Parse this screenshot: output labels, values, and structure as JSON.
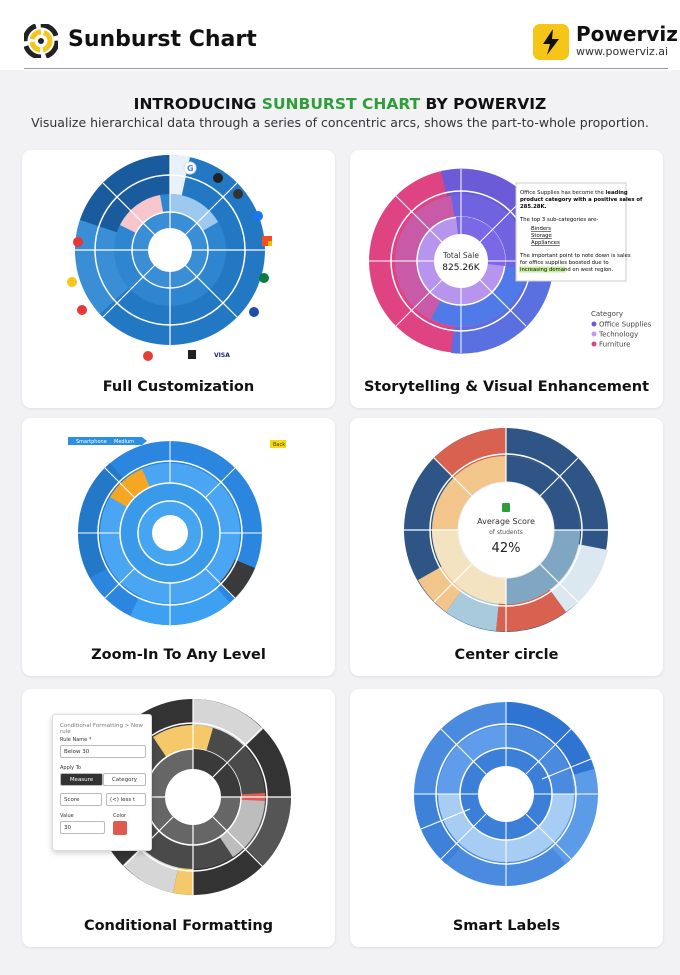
{
  "header": {
    "title": "Sunburst Chart",
    "brand": "Powerviz",
    "url": "www.powerviz.ai"
  },
  "intro": {
    "pre": "INTRODUCING ",
    "accent": "SUNBURST CHART",
    "post": " BY POWERVIZ",
    "subtitle": "Visualize hierarchical data through a series of concentric arcs, shows the part-to-whole proportion."
  },
  "cards": [
    {
      "caption": "Full Customization"
    },
    {
      "caption": "Storytelling & Visual Enhancement"
    },
    {
      "caption": "Zoom-In To Any Level"
    },
    {
      "caption": "Center circle"
    },
    {
      "caption": "Conditional Formatting"
    },
    {
      "caption": "Smart Labels"
    }
  ],
  "story": {
    "center_title": "Total Sale",
    "center_value": "825.26K",
    "note_1a": "Office Supplies",
    "note_1b": " has become the ",
    "note_1c": "leading",
    "note_2": "product category with a positive sales of",
    "note_3": "285.28K.",
    "note_4": "The top 3 sub-categories are-",
    "bullets": [
      "Binders",
      "Storage",
      "Appliances"
    ],
    "note_5": "The important point to note down is sales",
    "note_6": "for office supplies boosted due to",
    "note_7a": "increasing demand",
    "note_7b": " on west region.",
    "legend_title": "Category",
    "legend": [
      {
        "label": "Office Supplies",
        "color": "#6b5bd6"
      },
      {
        "label": "Technology",
        "color": "#c59ae6"
      },
      {
        "label": "Furniture",
        "color": "#e04382"
      }
    ]
  },
  "zoom": {
    "crumbs": [
      "Smartphone",
      "Medium"
    ],
    "back": "Back"
  },
  "center": {
    "title": "Average Score",
    "sub": "of students",
    "value": "42%"
  },
  "cond": {
    "panel_title": "Conditional Formatting  >  New rule",
    "rule_label": "Rule Name *",
    "rule_value": "Below 30",
    "apply_label": "Apply To",
    "tab_measure": "Measure",
    "tab_category": "Category",
    "field": "Score",
    "operator": "(<) less t",
    "value_label": "Value",
    "color_label": "Color",
    "value": "30",
    "rule_color": "#e15a4f"
  },
  "colors": {
    "accent": "#2e9e3a",
    "brand_yellow": "#f5c518",
    "blue_dark": "#1f5f9e",
    "blue": "#2f86d0"
  }
}
